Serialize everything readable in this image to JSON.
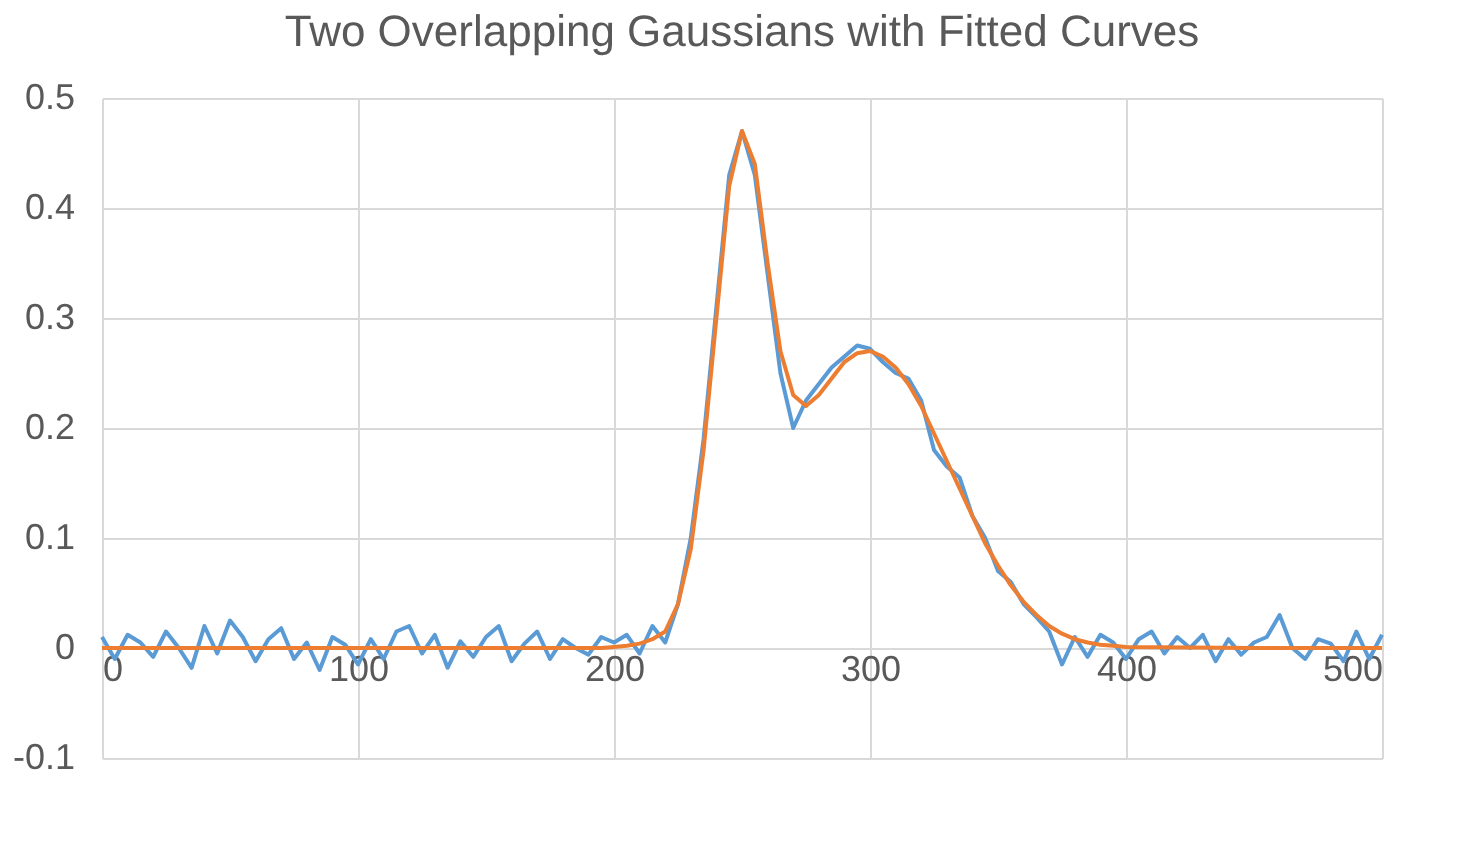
{
  "chart_data": {
    "type": "line",
    "title": "Two Overlapping Gaussians with Fitted Curves",
    "xlim": [
      0,
      500
    ],
    "xticks": [
      0,
      100,
      200,
      300,
      400,
      500
    ],
    "ylim": [
      -0.1,
      0.5
    ],
    "yticks": [
      -0.1,
      0,
      0.1,
      0.2,
      0.3,
      0.4,
      0.5
    ],
    "grid": true,
    "marker": "none",
    "line_style": "solid",
    "series": [
      {
        "color": "#5b9bd5",
        "x": [
          0,
          5,
          10,
          15,
          20,
          25,
          30,
          35,
          40,
          45,
          50,
          55,
          60,
          65,
          70,
          75,
          80,
          85,
          90,
          95,
          100,
          105,
          110,
          115,
          120,
          125,
          130,
          135,
          140,
          145,
          150,
          155,
          160,
          165,
          170,
          175,
          180,
          185,
          190,
          195,
          200,
          205,
          210,
          215,
          220,
          225,
          230,
          235,
          240,
          245,
          250,
          255,
          260,
          265,
          270,
          275,
          280,
          285,
          290,
          295,
          300,
          305,
          310,
          315,
          320,
          325,
          330,
          335,
          340,
          345,
          350,
          355,
          360,
          365,
          370,
          375,
          380,
          385,
          390,
          395,
          400,
          405,
          410,
          415,
          420,
          425,
          430,
          435,
          440,
          445,
          450,
          455,
          460,
          465,
          470,
          475,
          480,
          485,
          490,
          495,
          500
        ],
        "values": [
          0.01,
          -0.01,
          0.012,
          0.005,
          -0.008,
          0.015,
          0.0,
          -0.018,
          0.02,
          -0.005,
          0.025,
          0.01,
          -0.012,
          0.008,
          0.018,
          -0.01,
          0.005,
          -0.02,
          0.01,
          0.003,
          -0.015,
          0.008,
          -0.01,
          0.015,
          0.02,
          -0.005,
          0.012,
          -0.018,
          0.006,
          -0.008,
          0.01,
          0.02,
          -0.012,
          0.004,
          0.015,
          -0.01,
          0.008,
          0.0,
          -0.006,
          0.01,
          0.005,
          0.012,
          -0.005,
          0.02,
          0.005,
          0.04,
          0.1,
          0.19,
          0.31,
          0.43,
          0.47,
          0.43,
          0.34,
          0.25,
          0.2,
          0.225,
          0.24,
          0.255,
          0.265,
          0.275,
          0.272,
          0.26,
          0.25,
          0.245,
          0.225,
          0.18,
          0.165,
          0.155,
          0.12,
          0.1,
          0.07,
          0.06,
          0.04,
          0.028,
          0.015,
          -0.015,
          0.01,
          -0.008,
          0.012,
          0.005,
          -0.01,
          0.008,
          0.015,
          -0.005,
          0.01,
          0.0,
          0.012,
          -0.012,
          0.008,
          -0.006,
          0.005,
          0.01,
          0.03,
          0.0,
          -0.01,
          0.008,
          0.004,
          -0.012,
          0.015,
          -0.01,
          0.012
        ]
      },
      {
        "color": "#ed7d31",
        "x": [
          0,
          50,
          100,
          150,
          195,
          200,
          205,
          210,
          215,
          220,
          225,
          230,
          235,
          240,
          245,
          250,
          255,
          260,
          265,
          270,
          275,
          280,
          285,
          290,
          295,
          300,
          305,
          310,
          315,
          320,
          325,
          330,
          335,
          340,
          345,
          350,
          355,
          360,
          365,
          370,
          375,
          380,
          385,
          390,
          395,
          400,
          450,
          500
        ],
        "values": [
          0,
          0,
          0,
          0,
          0,
          0.001,
          0.002,
          0.004,
          0.008,
          0.015,
          0.04,
          0.09,
          0.18,
          0.3,
          0.42,
          0.47,
          0.44,
          0.35,
          0.27,
          0.23,
          0.22,
          0.23,
          0.245,
          0.26,
          0.268,
          0.27,
          0.265,
          0.255,
          0.24,
          0.22,
          0.195,
          0.17,
          0.145,
          0.12,
          0.095,
          0.075,
          0.057,
          0.042,
          0.03,
          0.02,
          0.013,
          0.008,
          0.005,
          0.003,
          0.002,
          0.001,
          0,
          0
        ]
      }
    ]
  }
}
